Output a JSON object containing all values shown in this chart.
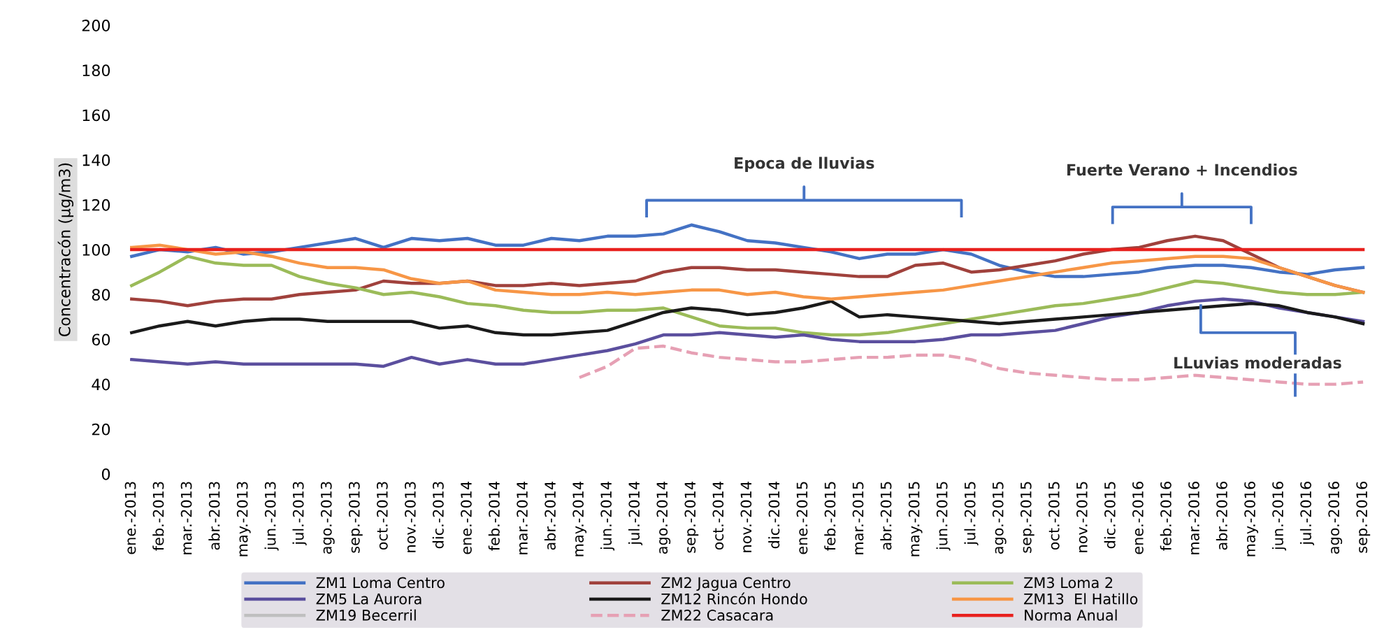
{
  "chart_data": {
    "type": "line",
    "ylabel": "Concentracón (µg/m3)",
    "categories": [
      "ene.-2013",
      "feb.-2013",
      "mar.-2013",
      "abr.-2013",
      "may.-2013",
      "jun.-2013",
      "jul.-2013",
      "ago.-2013",
      "sep.-2013",
      "oct.-2013",
      "nov.-2013",
      "dic.-2013",
      "ene.-2014",
      "feb.-2014",
      "mar.-2014",
      "abr.-2014",
      "may.-2014",
      "jun.-2014",
      "jul.-2014",
      "ago.-2014",
      "sep.-2014",
      "oct.-2014",
      "nov.-2014",
      "dic.-2014",
      "ene.-2015",
      "feb.-2015",
      "mar.-2015",
      "abr.-2015",
      "may.-2015",
      "jun.-2015",
      "jul.-2015",
      "ago.-2015",
      "sep.-2015",
      "oct.-2015",
      "nov.-2015",
      "dic.-2015",
      "ene.-2016",
      "feb.-2016",
      "mar.-2016",
      "abr.-2016",
      "may.-2016",
      "jun.-2016",
      "jul.-2016",
      "ago.-2016",
      "sep.-2016"
    ],
    "series": [
      {
        "name": "ZM1 Loma Centro",
        "color": "#4472c4",
        "values": [
          97,
          100,
          99,
          101,
          98,
          99,
          101,
          103,
          105,
          101,
          105,
          104,
          105,
          102,
          102,
          105,
          104,
          106,
          106,
          107,
          111,
          108,
          104,
          103,
          101,
          99,
          96,
          98,
          98,
          100,
          98,
          93,
          90,
          88,
          88,
          89,
          90,
          92,
          93,
          93,
          92,
          90,
          89,
          91,
          92
        ]
      },
      {
        "name": "ZM2 Jagua Centro",
        "color": "#a0413c",
        "values": [
          78,
          77,
          75,
          77,
          78,
          78,
          80,
          81,
          82,
          86,
          85,
          85,
          86,
          84,
          84,
          85,
          84,
          85,
          86,
          90,
          92,
          92,
          91,
          91,
          90,
          89,
          88,
          88,
          93,
          94,
          90,
          91,
          93,
          95,
          98,
          100,
          101,
          104,
          106,
          104,
          98,
          92,
          88,
          84,
          81
        ]
      },
      {
        "name": "ZM3 Loma 2",
        "color": "#9bbb59",
        "values": [
          84,
          90,
          97,
          94,
          93,
          93,
          88,
          85,
          83,
          80,
          81,
          79,
          76,
          75,
          73,
          72,
          72,
          73,
          73,
          74,
          70,
          66,
          65,
          65,
          63,
          62,
          62,
          63,
          65,
          67,
          69,
          71,
          73,
          75,
          76,
          78,
          80,
          83,
          86,
          85,
          83,
          81,
          80,
          80,
          81
        ]
      },
      {
        "name": "ZM5 La Aurora",
        "color": "#5b4f9e",
        "values": [
          51,
          50,
          49,
          50,
          49,
          49,
          49,
          49,
          49,
          48,
          52,
          49,
          51,
          49,
          49,
          51,
          53,
          55,
          58,
          62,
          62,
          63,
          62,
          61,
          62,
          60,
          59,
          59,
          59,
          60,
          62,
          62,
          63,
          64,
          67,
          70,
          72,
          75,
          77,
          78,
          77,
          74,
          72,
          70,
          68
        ]
      },
      {
        "name": "ZM12 Rincón Hondo",
        "color": "#1a1a1a",
        "values": [
          63,
          66,
          68,
          66,
          68,
          69,
          69,
          68,
          68,
          68,
          68,
          65,
          66,
          63,
          62,
          62,
          63,
          64,
          68,
          72,
          74,
          73,
          71,
          72,
          74,
          77,
          70,
          71,
          70,
          69,
          68,
          67,
          68,
          69,
          70,
          71,
          72,
          73,
          74,
          75,
          76,
          75,
          72,
          70,
          67
        ]
      },
      {
        "name": "ZM13  El Hatillo",
        "color": "#f79646",
        "values": [
          101,
          102,
          100,
          98,
          99,
          97,
          94,
          92,
          92,
          91,
          87,
          85,
          86,
          82,
          81,
          80,
          80,
          81,
          80,
          81,
          82,
          82,
          80,
          81,
          79,
          78,
          79,
          80,
          81,
          82,
          84,
          86,
          88,
          90,
          92,
          94,
          95,
          96,
          97,
          97,
          96,
          92,
          88,
          84,
          81
        ]
      },
      {
        "name": "ZM19 Becerril",
        "color": "#bfbfbf",
        "values": [
          null,
          null,
          null,
          null,
          null,
          null,
          null,
          null,
          null,
          null,
          null,
          null,
          null,
          null,
          null,
          null,
          null,
          null,
          null,
          null,
          null,
          null,
          null,
          null,
          null,
          null,
          null,
          null,
          null,
          null,
          null,
          null,
          null,
          null,
          null,
          null,
          null,
          null,
          null,
          null,
          null,
          null,
          null,
          null,
          null
        ]
      },
      {
        "name": "ZM22 Casacara",
        "color": "#e6a0b4",
        "line_style": "dashed",
        "values": [
          null,
          null,
          null,
          null,
          null,
          null,
          null,
          null,
          null,
          null,
          null,
          null,
          null,
          null,
          null,
          null,
          43,
          48,
          56,
          57,
          54,
          52,
          51,
          50,
          50,
          51,
          52,
          52,
          53,
          53,
          51,
          47,
          45,
          44,
          43,
          42,
          42,
          43,
          44,
          43,
          42,
          41,
          40,
          40,
          41
        ]
      },
      {
        "name": "Norma Anual",
        "color": "#e8211e",
        "values": [
          100,
          100,
          100,
          100,
          100,
          100,
          100,
          100,
          100,
          100,
          100,
          100,
          100,
          100,
          100,
          100,
          100,
          100,
          100,
          100,
          100,
          100,
          100,
          100,
          100,
          100,
          100,
          100,
          100,
          100,
          100,
          100,
          100,
          100,
          100,
          100,
          100,
          100,
          100,
          100,
          100,
          100,
          100,
          100,
          100
        ]
      }
    ],
    "ylim": [
      0,
      200
    ],
    "yticks": [
      0,
      20,
      40,
      60,
      80,
      100,
      120,
      140,
      160,
      180,
      200
    ],
    "grid": false,
    "legend": "bottom",
    "marker": "none",
    "line_style": "solid",
    "annotations": [
      "Epoca de lluvias",
      "Fuerte Verano + Incendios",
      "LLuvias moderadas"
    ]
  }
}
